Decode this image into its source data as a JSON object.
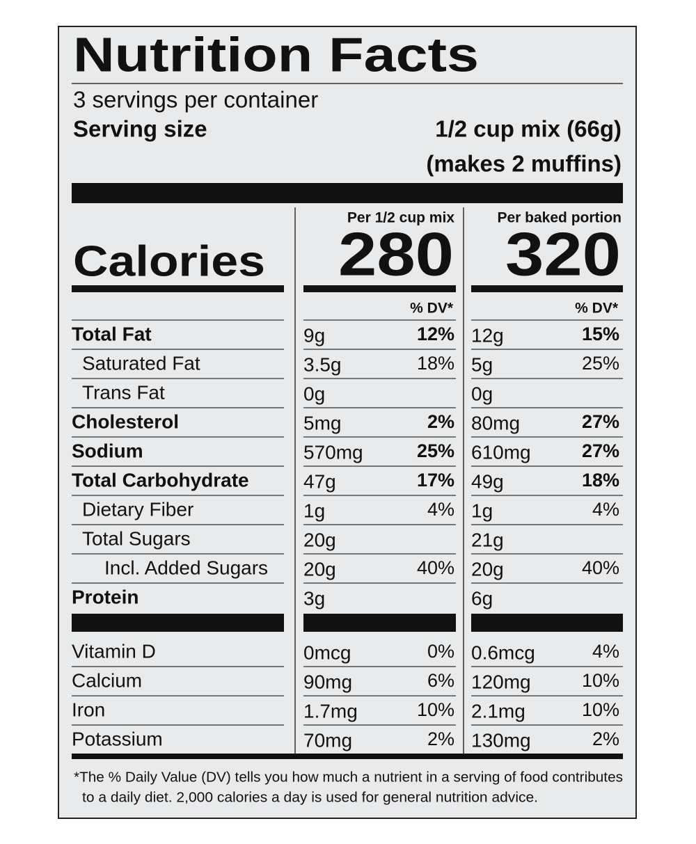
{
  "title": "Nutrition Facts",
  "servings": "3 servings per container",
  "serving_size": {
    "label": "Serving size",
    "lines": [
      "1/2 cup mix (66g)",
      "(makes 2 muffins)"
    ]
  },
  "calories": {
    "label": "Calories",
    "columns": [
      {
        "header": "Per 1/2 cup mix",
        "value": 280,
        "dv_header": "% DV*"
      },
      {
        "header": "Per baked portion",
        "value": 320,
        "dv_header": "% DV*"
      }
    ]
  },
  "nutrients": [
    {
      "name": "Total Fat",
      "bold": true,
      "indent": 0,
      "cells": [
        [
          "9g",
          "12%"
        ],
        [
          "12g",
          "15%"
        ]
      ]
    },
    {
      "name": "Saturated Fat",
      "bold": false,
      "indent": 1,
      "cells": [
        [
          "3.5g",
          "18%"
        ],
        [
          "5g",
          "25%"
        ]
      ]
    },
    {
      "name": "Trans Fat",
      "bold": false,
      "indent": 1,
      "cells": [
        [
          "0g",
          null
        ],
        [
          "0g",
          null
        ]
      ]
    },
    {
      "name": "Cholesterol",
      "bold": true,
      "indent": 0,
      "cells": [
        [
          "5mg",
          "2%"
        ],
        [
          "80mg",
          "27%"
        ]
      ]
    },
    {
      "name": "Sodium",
      "bold": true,
      "indent": 0,
      "cells": [
        [
          "570mg",
          "25%"
        ],
        [
          "610mg",
          "27%"
        ]
      ]
    },
    {
      "name": "Total Carbohydrate",
      "bold": true,
      "indent": 0,
      "cells": [
        [
          "47g",
          "17%"
        ],
        [
          "49g",
          "18%"
        ]
      ]
    },
    {
      "name": "Dietary Fiber",
      "bold": false,
      "indent": 1,
      "cells": [
        [
          "1g",
          "4%"
        ],
        [
          "1g",
          "4%"
        ]
      ]
    },
    {
      "name": "Total Sugars",
      "bold": false,
      "indent": 1,
      "cells": [
        [
          "20g",
          null
        ],
        [
          "21g",
          null
        ]
      ]
    },
    {
      "name": "Incl. Added Sugars",
      "bold": false,
      "indent": 2,
      "cells": [
        [
          "20g",
          "40%"
        ],
        [
          "20g",
          "40%"
        ]
      ]
    },
    {
      "name": "Protein",
      "bold": true,
      "indent": 0,
      "cells": [
        [
          "3g",
          null
        ],
        [
          "6g",
          null
        ]
      ]
    }
  ],
  "vitamins": [
    {
      "name": "Vitamin D",
      "cells": [
        [
          "0mcg",
          "0%"
        ],
        [
          "0.6mcg",
          "4%"
        ]
      ]
    },
    {
      "name": "Calcium",
      "cells": [
        [
          "90mg",
          "6%"
        ],
        [
          "120mg",
          "10%"
        ]
      ]
    },
    {
      "name": "Iron",
      "cells": [
        [
          "1.7mg",
          "10%"
        ],
        [
          "2.1mg",
          "10%"
        ]
      ]
    },
    {
      "name": "Potassium",
      "cells": [
        [
          "70mg",
          "2%"
        ],
        [
          "130mg",
          "2%"
        ]
      ]
    }
  ],
  "footnote": [
    "*The % Daily Value (DV) tells you how much a nutrient in a serving of food contributes",
    "to a daily diet. 2,000 calories a day is used for general nutrition advice."
  ]
}
